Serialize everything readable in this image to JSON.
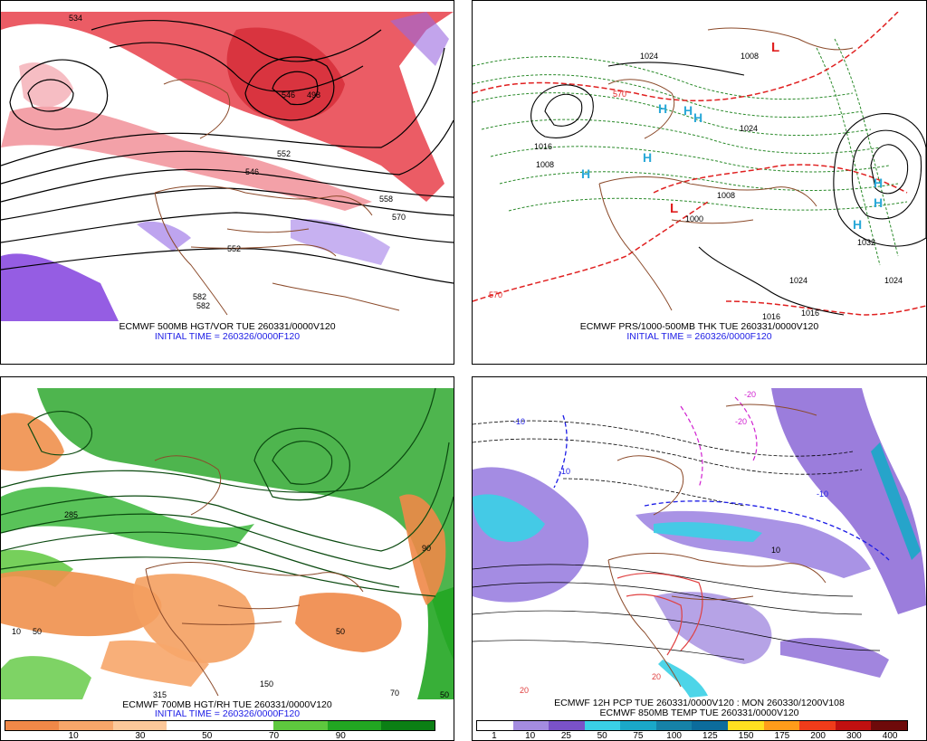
{
  "panels": {
    "p1": {
      "caption_line1": "ECMWF 500MB HGT/VOR TUE 260331/0000V120",
      "caption_line2": "INITIAL TIME = 260326/0000F120",
      "labels": [
        "534",
        "546",
        "498",
        "552",
        "558",
        "546",
        "570",
        "552",
        "582",
        "582"
      ]
    },
    "p2": {
      "caption_line1": "ECMWF PRS/1000-500MB THK TUE 260331/0000V120",
      "caption_line2": "INITIAL TIME = 260326/0000F120",
      "labels": [
        "1024",
        "1008",
        "1016",
        "1024",
        "1008",
        "1024",
        "1032",
        "1024",
        "1016",
        "1016",
        "570",
        "570",
        "1000",
        "1008"
      ],
      "high_symbol": "H",
      "low_symbol": "L"
    },
    "p3": {
      "caption_line1": "ECMWF 700MB HGT/RH TUE 260331/0000V120",
      "caption_line2": "INITIAL TIME = 260326/0000F120",
      "labels": [
        "285",
        "50",
        "10",
        "50",
        "315",
        "150",
        "50",
        "70",
        "90"
      ],
      "colorbar": {
        "colors": [
          "#f08848",
          "#f7a66a",
          "#fcc89a",
          "#ffffff",
          "#ffffff",
          "#5ec83e",
          "#22a622",
          "#0b7f14"
        ],
        "ticks": [
          "10",
          "30",
          "50",
          "70",
          "90"
        ]
      }
    },
    "p4": {
      "caption_line1": "ECMWF 12H PCP TUE 260331/0000V120 : MON 260330/1200V108",
      "caption_line2": "ECMWF 850MB TEMP TUE 260331/0000V120",
      "labels": [
        "-10",
        "-10",
        "-20",
        "10",
        "20",
        "20",
        "-10",
        "-20"
      ],
      "colorbar": {
        "colors": [
          "#ffffff",
          "#a48ce0",
          "#7a52c8",
          "#3ad0e6",
          "#1aa8c8",
          "#1682a8",
          "#0c6c9c",
          "#ffe020",
          "#ff9c1a",
          "#f03c1a",
          "#c01010",
          "#6e0a0a"
        ],
        "ticks": [
          "1",
          "10",
          "25",
          "50",
          "75",
          "100",
          "125",
          "150",
          "175",
          "200",
          "300",
          "400"
        ]
      }
    }
  }
}
